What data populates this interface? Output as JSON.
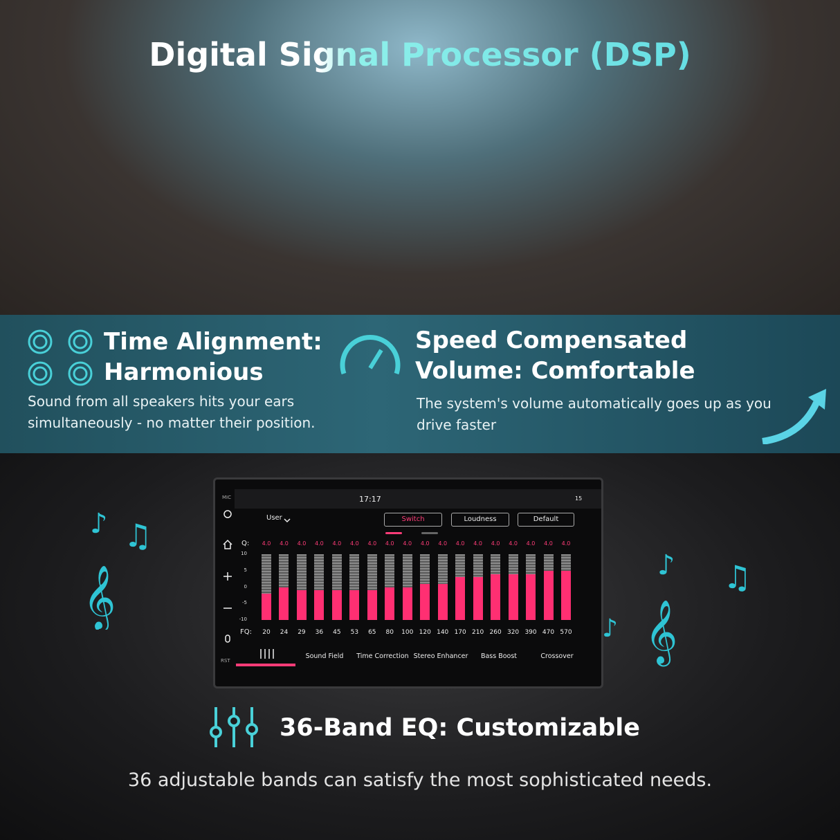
{
  "header": {
    "title": "Digital Signal Processor (DSP)"
  },
  "features": [
    {
      "title": "Time Alignment: Harmonious",
      "text": "Sound from all speakers hits your ears simultaneously - no matter their position."
    },
    {
      "title": "Speed Compensated Volume: Comfortable",
      "text": "The system's volume automatically goes up as you drive faster"
    }
  ],
  "screen": {
    "side_labels": [
      "MIC",
      "RST"
    ],
    "time": "17:17",
    "battery": "15",
    "preset": "User",
    "buttons": [
      "Switch",
      "Loudness",
      "Default"
    ],
    "q_label": "Q:",
    "fq_label": "FQ:",
    "scale": {
      "ylim": [
        -10,
        10
      ],
      "yticks": [
        10,
        5,
        0,
        -5,
        -10
      ]
    },
    "q_values": [
      "4.0",
      "4.0",
      "4.0",
      "4.0",
      "4.0",
      "4.0",
      "4.0",
      "4.0",
      "4.0",
      "4.0",
      "4.0",
      "4.0",
      "4.0",
      "4.0",
      "4.0",
      "4.0",
      "4.0",
      "4.0"
    ],
    "frequencies": [
      20,
      24,
      29,
      36,
      45,
      53,
      65,
      80,
      100,
      120,
      140,
      170,
      210,
      260,
      320,
      390,
      470,
      570
    ],
    "levels": [
      -2,
      0,
      -1,
      -1,
      -1,
      -1,
      -1,
      0,
      0,
      1,
      1,
      3,
      3,
      4,
      4,
      4,
      5,
      5
    ],
    "tabs": [
      "Sound Field",
      "Time Correction",
      "Stereo Enhancer",
      "Bass Boost",
      "Crossover"
    ]
  },
  "footer": {
    "title": "36-Band EQ: Customizable",
    "text": "36 adjustable bands can satisfy the most sophisticated needs."
  }
}
